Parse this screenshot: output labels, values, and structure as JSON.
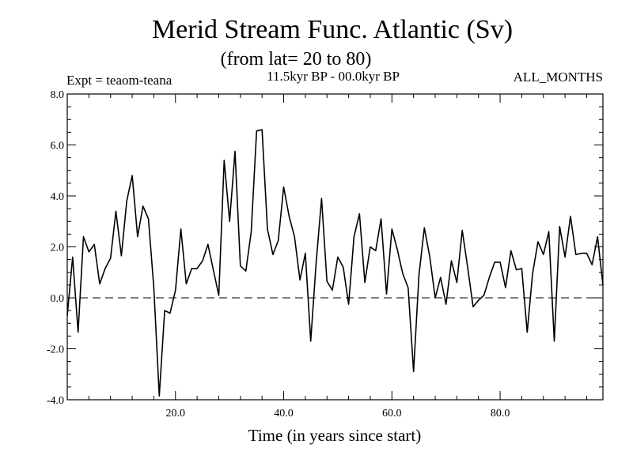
{
  "chart_data": {
    "type": "line",
    "title": "Merid Stream Func. Atlantic (Sv)",
    "subtitle": "(from lat= 20 to 80)",
    "left_label": "Expt = teaom-teana",
    "center_label": "11.5kyr BP - 00.0kyr BP",
    "right_label": "ALL_MONTHS",
    "xlabel": "Time (in years since start)",
    "ylabel": "",
    "xlim": [
      0,
      99
    ],
    "ylim": [
      -4,
      8
    ],
    "x_ticks": [
      20,
      40,
      60,
      80
    ],
    "x_tick_labels": [
      "20.0",
      "40.0",
      "60.0",
      "80.0"
    ],
    "y_ticks": [
      -4,
      -2,
      0,
      2,
      4,
      6,
      8
    ],
    "y_tick_labels": [
      "-4.0",
      "-2.0",
      "0.0",
      "2.0",
      "4.0",
      "6.0",
      "8.0"
    ],
    "reference_line": {
      "y": 0,
      "style": "dashed"
    },
    "series": [
      {
        "name": "teaom-teana",
        "x": [
          0,
          1,
          2,
          3,
          4,
          5,
          6,
          7,
          8,
          9,
          10,
          11,
          12,
          13,
          14,
          15,
          16,
          17,
          18,
          19,
          20,
          21,
          22,
          23,
          24,
          25,
          26,
          27,
          28,
          29,
          30,
          31,
          32,
          33,
          34,
          35,
          36,
          37,
          38,
          39,
          40,
          41,
          42,
          43,
          44,
          45,
          46,
          47,
          48,
          49,
          50,
          51,
          52,
          53,
          54,
          55,
          56,
          57,
          58,
          59,
          60,
          61,
          62,
          63,
          64,
          65,
          66,
          67,
          68,
          69,
          70,
          71,
          72,
          73,
          74,
          75,
          76,
          77,
          78,
          79,
          80,
          81,
          82,
          83,
          84,
          85,
          86,
          87,
          88,
          89,
          90,
          91,
          92,
          93,
          94,
          95,
          96,
          97,
          98,
          99
        ],
        "values": [
          -0.7,
          1.6,
          -1.35,
          2.4,
          1.8,
          2.1,
          0.55,
          1.15,
          1.55,
          3.4,
          1.65,
          3.8,
          4.8,
          2.4,
          3.6,
          3.1,
          0.4,
          -3.85,
          -0.5,
          -0.6,
          0.3,
          2.7,
          0.55,
          1.15,
          1.15,
          1.45,
          2.1,
          1.1,
          0.1,
          5.4,
          3.0,
          5.75,
          1.25,
          1.05,
          2.6,
          6.55,
          6.6,
          2.7,
          1.7,
          2.25,
          4.35,
          3.2,
          2.4,
          0.7,
          1.75,
          -1.7,
          1.4,
          3.9,
          0.65,
          0.3,
          1.6,
          1.2,
          -0.25,
          2.4,
          3.3,
          0.6,
          2.0,
          1.85,
          3.1,
          0.15,
          2.7,
          1.9,
          0.95,
          0.4,
          -2.9,
          0.9,
          2.75,
          1.6,
          0.0,
          0.8,
          -0.25,
          1.45,
          0.6,
          2.65,
          1.2,
          -0.35,
          -0.1,
          0.1,
          0.8,
          1.4,
          1.4,
          0.4,
          1.85,
          1.1,
          1.15,
          -1.35,
          0.95,
          2.2,
          1.7,
          2.6,
          -1.7,
          2.8,
          1.6,
          3.2,
          1.7,
          1.75,
          1.75,
          1.3,
          2.4,
          0.5
        ]
      }
    ]
  }
}
